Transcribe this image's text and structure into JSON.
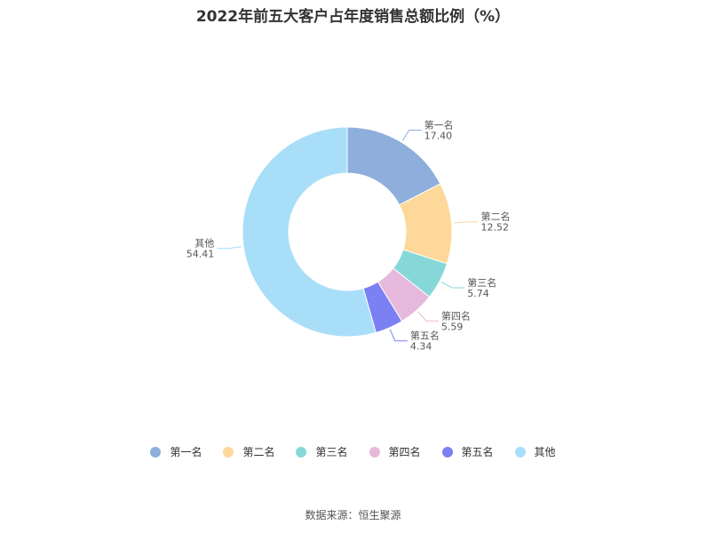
{
  "title": "2022年前五大客户占年度销售总额比例（%）",
  "source": "数据来源：恒生聚源",
  "chart_data": {
    "type": "pie",
    "variant": "donut",
    "title": "2022年前五大客户占年度销售总额比例（%）",
    "categories": [
      "第一名",
      "第二名",
      "第三名",
      "第四名",
      "第五名",
      "其他"
    ],
    "values": [
      17.4,
      12.52,
      5.74,
      5.59,
      4.34,
      54.41
    ],
    "value_labels": [
      "17.40",
      "12.52",
      "5.74",
      "5.59",
      "4.34",
      "54.41"
    ],
    "colors": [
      "#8eaedb",
      "#fdd89a",
      "#86d8d8",
      "#e6b9dc",
      "#7b80f3",
      "#a9def9"
    ],
    "legend_position": "bottom"
  }
}
